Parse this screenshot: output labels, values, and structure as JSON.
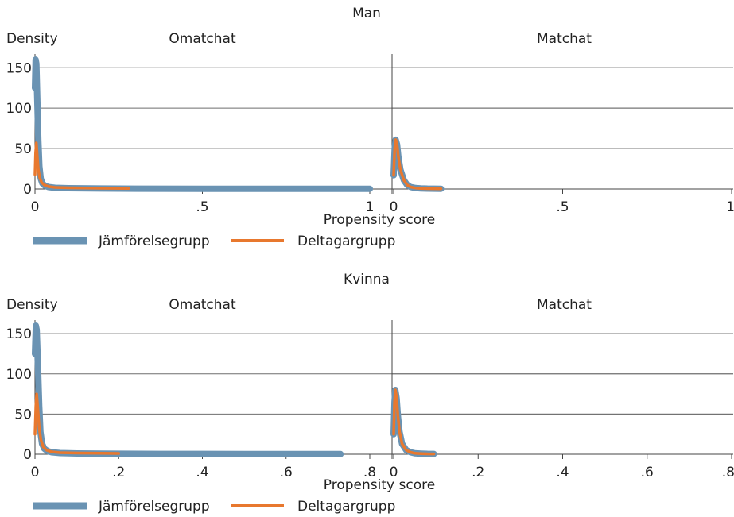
{
  "colors": {
    "jamforelse": "#6a93b3",
    "deltagar": "#e8782e",
    "grid": "#6e6e6e",
    "axis": "#444444",
    "text": "#222222"
  },
  "chart_data": [
    {
      "type": "line",
      "title": "Man",
      "ylabel": "Density",
      "xlabel": "Propensity score",
      "ylim": [
        0,
        165
      ],
      "yticks": [
        0,
        50,
        100,
        150
      ],
      "ytick_labels": [
        "0",
        "50",
        "100",
        "150"
      ],
      "legend": {
        "placement": "bottom-left",
        "entries": [
          "Jämförelsegrupp",
          "Deltagargrupp"
        ]
      },
      "grid": true,
      "panels": [
        {
          "title": "Omatchat",
          "xlim": [
            0,
            1
          ],
          "xticks": [
            0,
            0.5,
            1
          ],
          "xtick_labels": [
            "0",
            ".5",
            "1"
          ],
          "series": [
            {
              "name": "Jämförelsegrupp",
              "x": [
                0,
                0.002,
                0.004,
                0.007,
                0.01,
                0.013,
                0.017,
                0.022,
                0.03,
                0.04,
                0.06,
                0.1,
                0.2,
                0.3,
                0.5,
                0.7,
                1.0
              ],
              "y": [
                125,
                160,
                155,
                110,
                60,
                28,
                13,
                7,
                4,
                2.5,
                1.5,
                1,
                0.6,
                0.4,
                0.3,
                0.2,
                0.2
              ]
            },
            {
              "name": "Deltagargrupp",
              "x": [
                0,
                0.002,
                0.004,
                0.007,
                0.01,
                0.014,
                0.02,
                0.028,
                0.04,
                0.06,
                0.1,
                0.2,
                0.28
              ],
              "y": [
                18,
                45,
                57,
                40,
                24,
                14,
                8,
                5,
                3,
                2,
                1.5,
                1,
                0.8
              ]
            }
          ]
        },
        {
          "title": "Matchat",
          "xlim": [
            0,
            1
          ],
          "xticks": [
            0,
            0.5,
            1
          ],
          "xtick_labels": [
            "0",
            ".5",
            "1"
          ],
          "series": [
            {
              "name": "Jämförelsegrupp",
              "x": [
                0,
                0.003,
                0.006,
                0.01,
                0.014,
                0.02,
                0.03,
                0.04,
                0.05,
                0.065,
                0.08,
                0.1,
                0.12,
                0.14
              ],
              "y": [
                17,
                50,
                61,
                55,
                40,
                24,
                11,
                5,
                2.5,
                1.2,
                0.8,
                0.5,
                0.4,
                0.3
              ]
            },
            {
              "name": "Deltagargrupp",
              "x": [
                0,
                0.003,
                0.006,
                0.01,
                0.014,
                0.02,
                0.03,
                0.04,
                0.05,
                0.065,
                0.08,
                0.1,
                0.12,
                0.14
              ],
              "y": [
                17,
                50,
                61,
                55,
                40,
                24,
                11,
                5,
                2.5,
                1.2,
                0.8,
                0.5,
                0.4,
                0.3
              ]
            }
          ]
        }
      ]
    },
    {
      "type": "line",
      "title": "Kvinna",
      "ylabel": "Density",
      "xlabel": "Propensity score",
      "ylim": [
        0,
        165
      ],
      "yticks": [
        0,
        50,
        100,
        150
      ],
      "ytick_labels": [
        "0",
        "50",
        "100",
        "150"
      ],
      "legend": {
        "placement": "bottom-left",
        "entries": [
          "Jämförelsegrupp",
          "Deltagargrupp"
        ]
      },
      "grid": true,
      "panels": [
        {
          "title": "Omatchat",
          "xlim": [
            0,
            0.8
          ],
          "xticks": [
            0,
            0.2,
            0.4,
            0.6,
            0.8
          ],
          "xtick_labels": [
            "0",
            ".2",
            ".4",
            ".6",
            ".8"
          ],
          "series": [
            {
              "name": "Jämförelsegrupp",
              "x": [
                0,
                0.002,
                0.004,
                0.007,
                0.01,
                0.013,
                0.017,
                0.022,
                0.03,
                0.04,
                0.06,
                0.1,
                0.2,
                0.3,
                0.5,
                0.73
              ],
              "y": [
                125,
                160,
                155,
                110,
                60,
                28,
                13,
                7,
                4,
                2.5,
                1.5,
                1,
                0.6,
                0.4,
                0.3,
                0.2
              ]
            },
            {
              "name": "Deltagargrupp",
              "x": [
                0,
                0.002,
                0.004,
                0.007,
                0.01,
                0.014,
                0.02,
                0.028,
                0.04,
                0.06,
                0.1,
                0.2
              ],
              "y": [
                25,
                60,
                75,
                55,
                33,
                18,
                9,
                5,
                3,
                2,
                1.5,
                1
              ]
            }
          ]
        },
        {
          "title": "Matchat",
          "xlim": [
            0,
            0.8
          ],
          "xticks": [
            0,
            0.2,
            0.4,
            0.6,
            0.8
          ],
          "xtick_labels": [
            "0",
            ".2",
            ".4",
            ".6",
            ".8"
          ],
          "series": [
            {
              "name": "Jämförelsegrupp",
              "x": [
                0,
                0.002,
                0.004,
                0.007,
                0.01,
                0.014,
                0.02,
                0.03,
                0.04,
                0.05,
                0.065,
                0.08,
                0.095
              ],
              "y": [
                25,
                65,
                80,
                70,
                48,
                28,
                13,
                5,
                2.5,
                1.2,
                0.8,
                0.5,
                0.4
              ]
            },
            {
              "name": "Deltagargrupp",
              "x": [
                0,
                0.002,
                0.004,
                0.007,
                0.01,
                0.014,
                0.02,
                0.03,
                0.04,
                0.05,
                0.065,
                0.08,
                0.095
              ],
              "y": [
                25,
                65,
                80,
                70,
                48,
                28,
                13,
                5,
                2.5,
                1.2,
                0.8,
                0.5,
                0.4
              ]
            }
          ]
        }
      ]
    }
  ]
}
